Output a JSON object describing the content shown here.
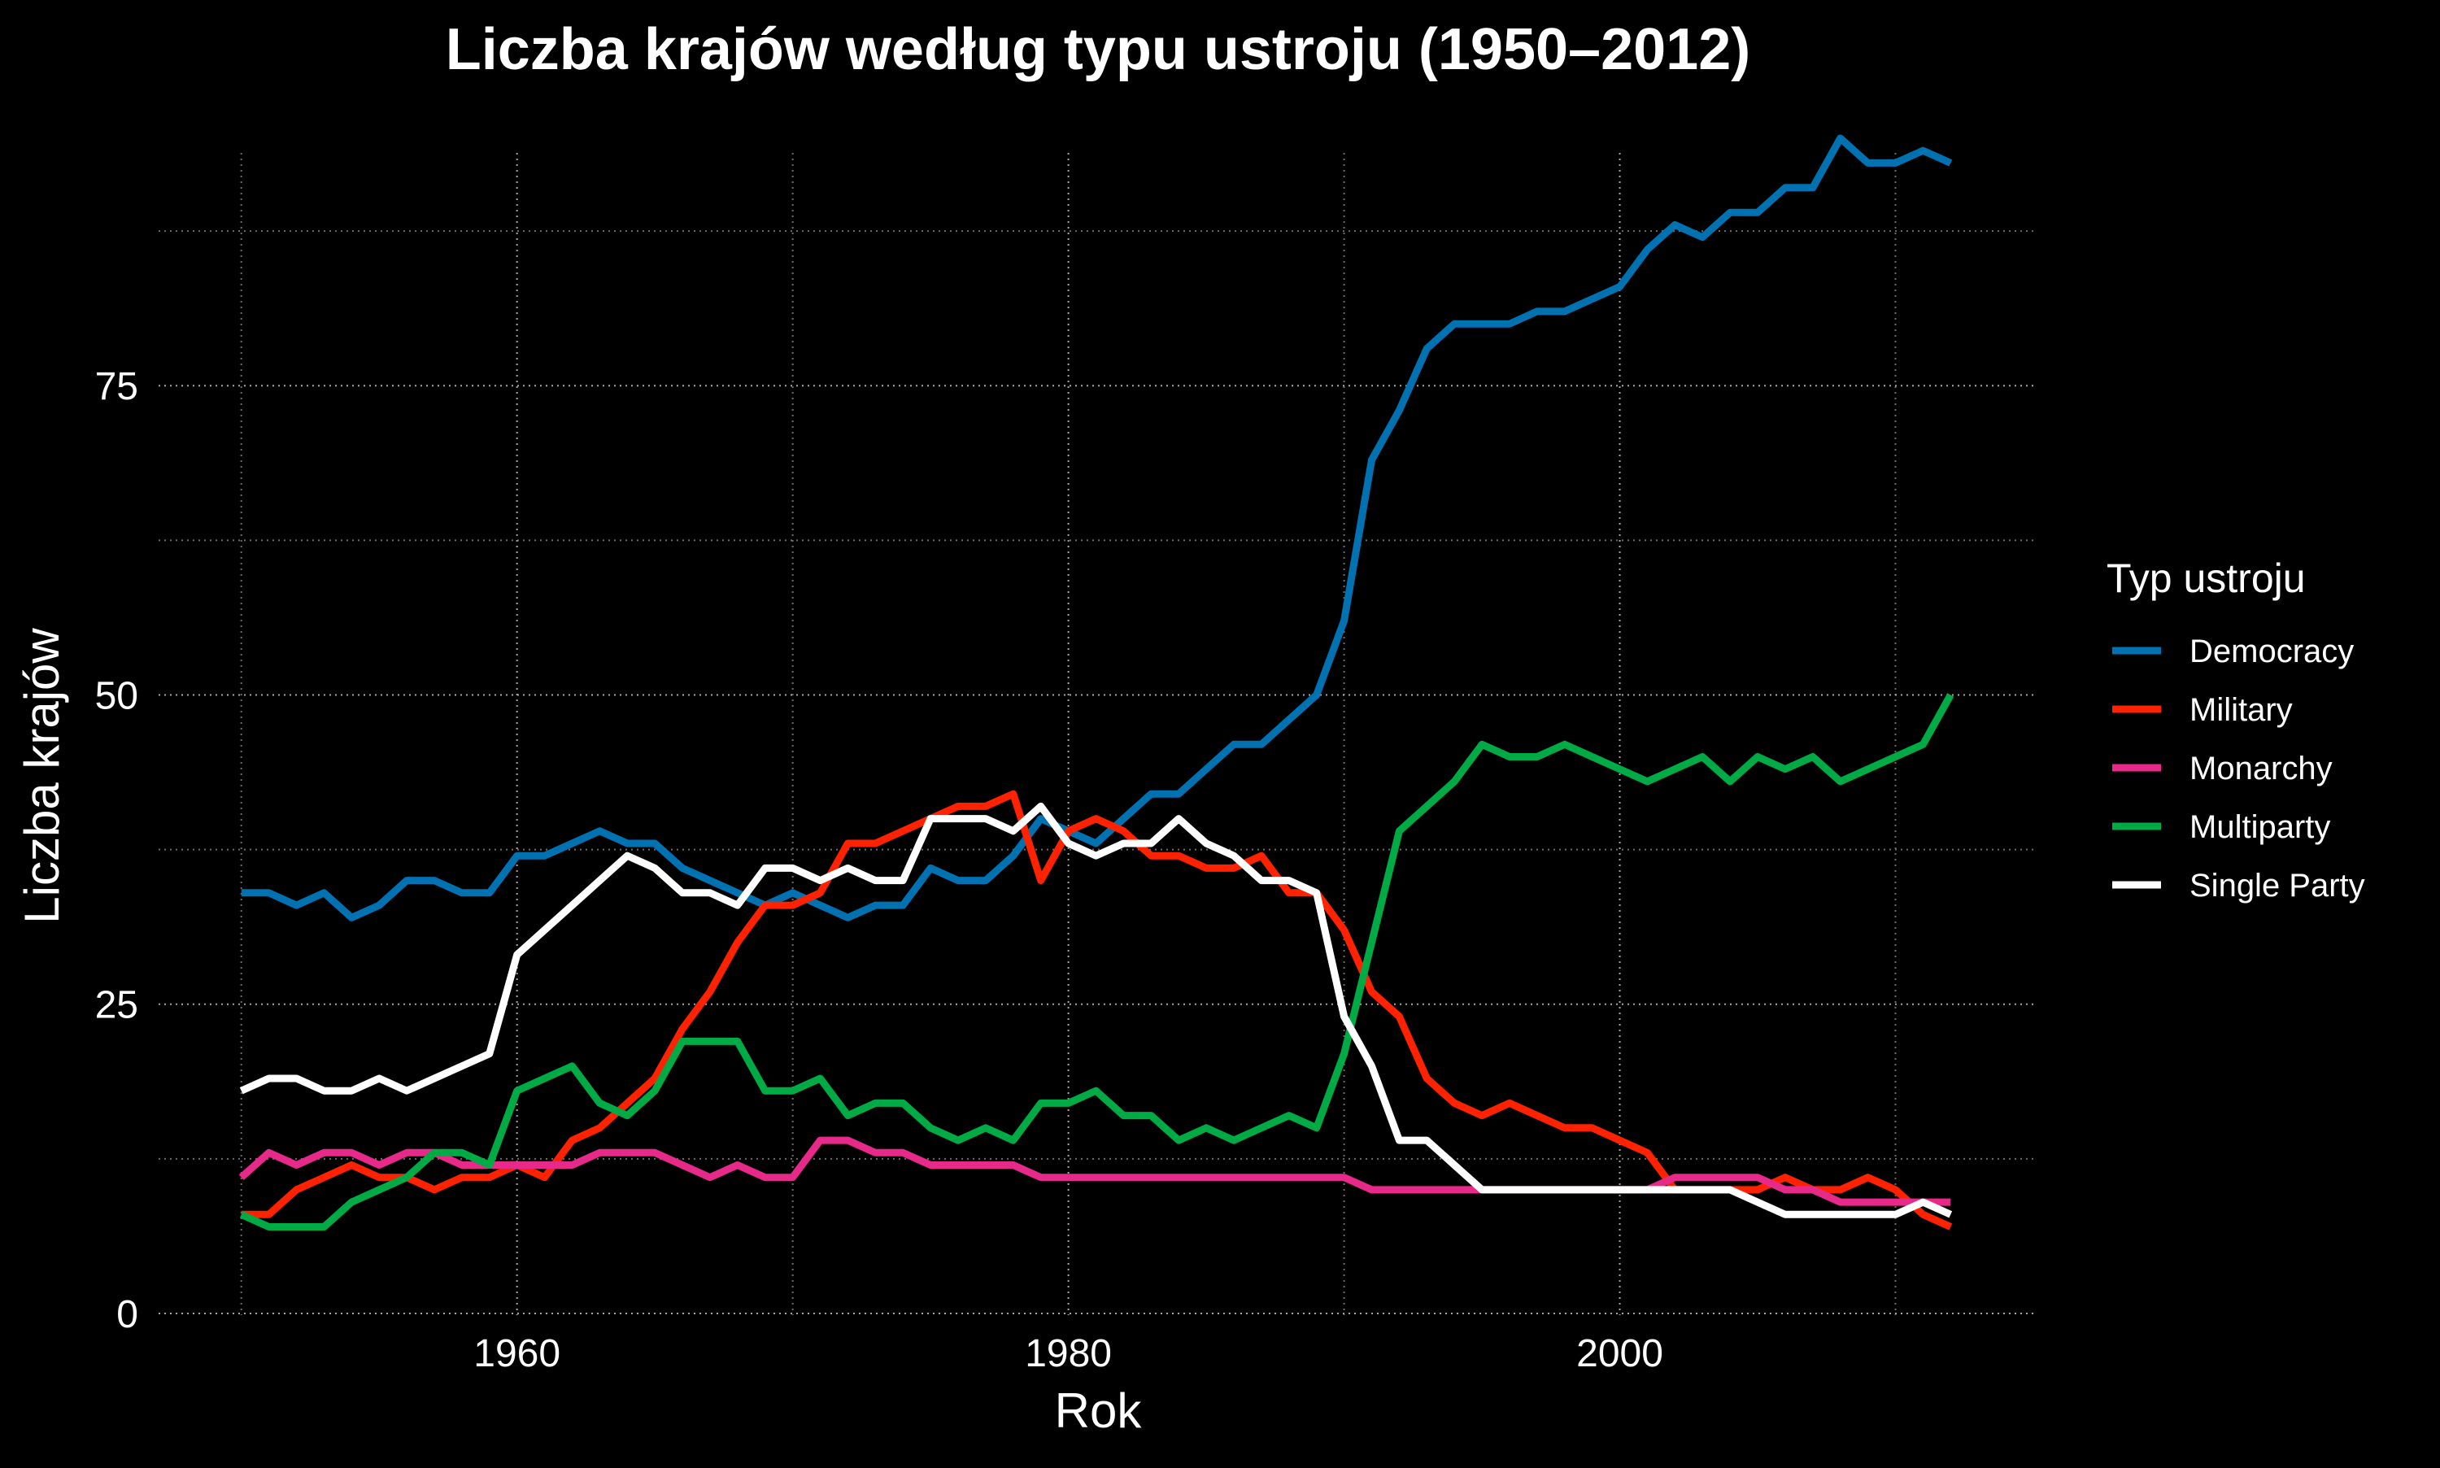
{
  "chart_data": {
    "type": "line",
    "title": "Liczba krajów według typu ustroju (1950–2012)",
    "xlabel": "Rok",
    "ylabel": "Liczba krajów",
    "xlim": [
      1947,
      2015
    ],
    "ylim": [
      0,
      95
    ],
    "x_ticks": [
      1960,
      1980,
      2000
    ],
    "x_minor_ticks": [
      1950,
      1970,
      1990,
      2010
    ],
    "y_ticks": [
      0,
      25,
      50,
      75
    ],
    "y_minor_ticks": [
      12.5,
      37.5,
      62.5,
      87.5
    ],
    "grid": true,
    "legend": {
      "title": "Typ ustroju",
      "position": "right"
    },
    "x": [
      1950,
      1951,
      1952,
      1953,
      1954,
      1955,
      1956,
      1957,
      1958,
      1959,
      1960,
      1961,
      1962,
      1963,
      1964,
      1965,
      1966,
      1967,
      1968,
      1969,
      1970,
      1971,
      1972,
      1973,
      1974,
      1975,
      1976,
      1977,
      1978,
      1979,
      1980,
      1981,
      1982,
      1983,
      1984,
      1985,
      1986,
      1987,
      1988,
      1989,
      1990,
      1991,
      1992,
      1993,
      1994,
      1995,
      1996,
      1997,
      1998,
      1999,
      2000,
      2001,
      2002,
      2003,
      2004,
      2005,
      2006,
      2007,
      2008,
      2009,
      2010,
      2011,
      2012
    ],
    "series": [
      {
        "name": "Democracy",
        "color": "#0072B2",
        "values": [
          34,
          34,
          33,
          34,
          32,
          33,
          35,
          35,
          34,
          34,
          37,
          37,
          38,
          39,
          38,
          38,
          36,
          35,
          34,
          33,
          34,
          33,
          32,
          33,
          33,
          36,
          35,
          35,
          37,
          40,
          39,
          38,
          40,
          42,
          42,
          44,
          46,
          46,
          48,
          50,
          56,
          69,
          73,
          78,
          80,
          80,
          80,
          81,
          81,
          82,
          83,
          86,
          88,
          87,
          89,
          89,
          91,
          91,
          95,
          93,
          93,
          94,
          93
        ]
      },
      {
        "name": "Military",
        "color": "#FF2200",
        "values": [
          8,
          8,
          10,
          11,
          12,
          11,
          11,
          10,
          11,
          11,
          12,
          11,
          14,
          15,
          17,
          19,
          23,
          26,
          30,
          33,
          33,
          34,
          38,
          38,
          39,
          40,
          41,
          41,
          42,
          35,
          39,
          40,
          39,
          37,
          37,
          36,
          36,
          37,
          34,
          34,
          31,
          26,
          24,
          19,
          17,
          16,
          17,
          16,
          15,
          15,
          14,
          13,
          10,
          10,
          10,
          10,
          11,
          10,
          10,
          11,
          10,
          8,
          7
        ]
      },
      {
        "name": "Monarchy",
        "color": "#E7298A",
        "values": [
          11,
          13,
          12,
          13,
          13,
          12,
          13,
          13,
          12,
          12,
          12,
          12,
          12,
          13,
          13,
          13,
          12,
          11,
          12,
          11,
          11,
          14,
          14,
          13,
          13,
          12,
          12,
          12,
          12,
          11,
          11,
          11,
          11,
          11,
          11,
          11,
          11,
          11,
          11,
          11,
          11,
          10,
          10,
          10,
          10,
          10,
          10,
          10,
          10,
          10,
          10,
          10,
          11,
          11,
          11,
          11,
          10,
          10,
          9,
          9,
          9,
          9,
          9
        ]
      },
      {
        "name": "Multiparty",
        "color": "#00AA44",
        "values": [
          8,
          7,
          7,
          7,
          9,
          10,
          11,
          13,
          13,
          12,
          18,
          19,
          20,
          17,
          16,
          18,
          22,
          22,
          22,
          18,
          18,
          19,
          16,
          17,
          17,
          15,
          14,
          15,
          14,
          17,
          17,
          18,
          16,
          16,
          14,
          15,
          14,
          15,
          16,
          15,
          21,
          30,
          39,
          41,
          43,
          46,
          45,
          45,
          46,
          45,
          44,
          43,
          44,
          45,
          43,
          45,
          44,
          45,
          43,
          44,
          45,
          46,
          50
        ]
      },
      {
        "name": "Single Party",
        "color": "#FFFFFF",
        "values": [
          18,
          19,
          19,
          18,
          18,
          19,
          18,
          19,
          20,
          21,
          29,
          31,
          33,
          35,
          37,
          36,
          34,
          34,
          33,
          36,
          36,
          35,
          36,
          35,
          35,
          40,
          40,
          40,
          39,
          41,
          38,
          37,
          38,
          38,
          40,
          38,
          37,
          35,
          35,
          34,
          24,
          20,
          14,
          14,
          12,
          10,
          10,
          10,
          10,
          10,
          10,
          10,
          10,
          10,
          10,
          9,
          8,
          8,
          8,
          8,
          8,
          9,
          8
        ]
      }
    ]
  }
}
